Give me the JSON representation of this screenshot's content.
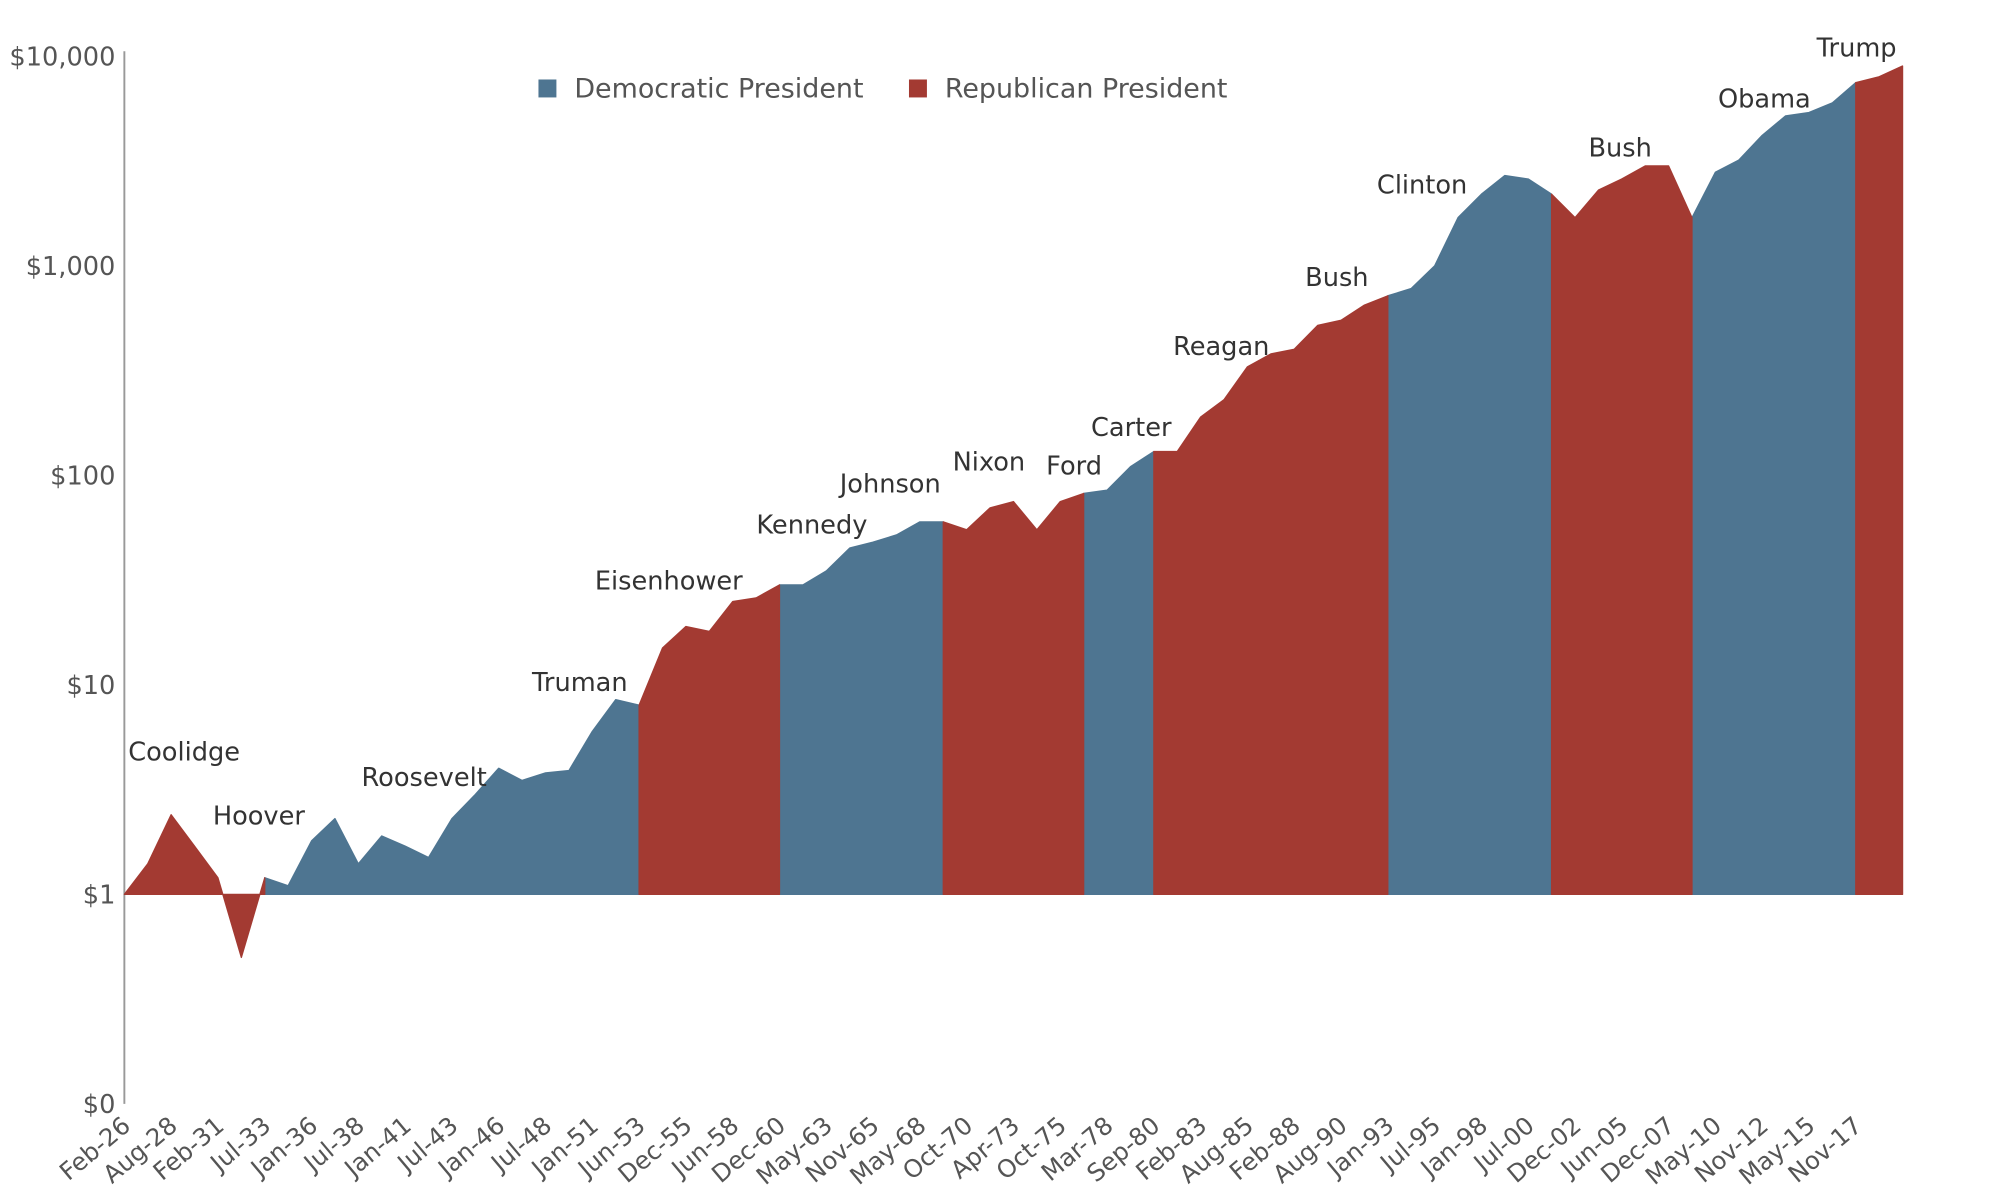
{
  "chart_data": {
    "type": "area",
    "log_scale": true,
    "grid": false,
    "legend": "top",
    "categories": [
      "Feb-26",
      null,
      "Aug-28",
      null,
      "Feb-31",
      null,
      "Jul-33",
      null,
      "Jan-36",
      null,
      "Jul-38",
      null,
      "Jan-41",
      null,
      "Jul-43",
      null,
      "Jan-46",
      null,
      "Jul-48",
      null,
      "Jan-51",
      null,
      "Jun-53",
      null,
      "Dec-55",
      null,
      "Jun-58",
      null,
      "Dec-60",
      null,
      "May-63",
      null,
      "Nov-65",
      null,
      "May-68",
      null,
      "Oct-70",
      null,
      "Apr-73",
      null,
      "Oct-75",
      null,
      "Mar-78",
      null,
      "Sep-80",
      null,
      "Feb-83",
      null,
      "Aug-85",
      null,
      "Feb-88",
      null,
      "Aug-90",
      null,
      "Jan-93",
      null,
      "Jul-95",
      null,
      "Jan-98",
      null,
      "Jul-00",
      null,
      "Dec-02",
      null,
      "Jun-05",
      null,
      "Dec-07",
      null,
      "May-10",
      null,
      "Nov-12",
      null,
      "May-15",
      null,
      "Nov-17",
      null,
      null
    ],
    "series": [
      {
        "name": "Democratic President",
        "color": "#4e7591",
        "values": [
          null,
          null,
          null,
          null,
          null,
          null,
          1.2,
          1.1,
          1.8,
          2.3,
          1.4,
          1.9,
          1.7,
          1.5,
          2.3,
          3.0,
          4.0,
          3.5,
          3.8,
          3.9,
          6.0,
          8.5,
          8.0,
          null,
          null,
          null,
          null,
          null,
          30,
          30,
          35,
          45,
          48,
          52,
          60,
          60,
          null,
          null,
          null,
          null,
          null,
          82,
          85,
          110,
          130,
          null,
          null,
          null,
          null,
          null,
          null,
          null,
          null,
          null,
          720,
          780,
          1000,
          1700,
          2200,
          2700,
          2600,
          2200,
          null,
          null,
          null,
          null,
          null,
          1700,
          2800,
          3200,
          4200,
          5200,
          5400,
          6000,
          7500,
          null,
          null
        ]
      },
      {
        "name": "Republican President",
        "color": "#a33a32",
        "values": [
          1.0,
          1.4,
          2.4,
          1.7,
          1.2,
          0.5,
          1.2,
          null,
          null,
          null,
          null,
          null,
          null,
          null,
          null,
          null,
          null,
          null,
          null,
          null,
          null,
          null,
          8.0,
          15,
          19,
          18,
          25,
          26,
          30,
          null,
          null,
          null,
          null,
          null,
          null,
          60,
          55,
          70,
          75,
          55,
          75,
          82,
          null,
          null,
          130,
          130,
          190,
          230,
          330,
          380,
          400,
          520,
          550,
          650,
          720,
          null,
          null,
          null,
          null,
          null,
          null,
          2200,
          1700,
          2300,
          2600,
          3000,
          3000,
          1700,
          null,
          null,
          null,
          null,
          null,
          null,
          7500,
          8000,
          9000
        ]
      }
    ],
    "ylim": [
      0.1,
      10000
    ],
    "yticks": [
      {
        "value": 0.1,
        "label": "$0"
      },
      {
        "value": 1,
        "label": "$1"
      },
      {
        "value": 10,
        "label": "$10"
      },
      {
        "value": 100,
        "label": "$100"
      },
      {
        "value": 1000,
        "label": "$1,000"
      },
      {
        "value": 10000,
        "label": "$10,000"
      }
    ],
    "annotations": [
      "Coolidge",
      "Hoover",
      "Roosevelt",
      "Truman",
      "Eisenhower",
      "Kennedy",
      "Johnson",
      "Nixon",
      "Ford",
      "Carter",
      "Reagan",
      "Bush",
      "Clinton",
      "Bush",
      "Obama",
      "Trump"
    ]
  }
}
